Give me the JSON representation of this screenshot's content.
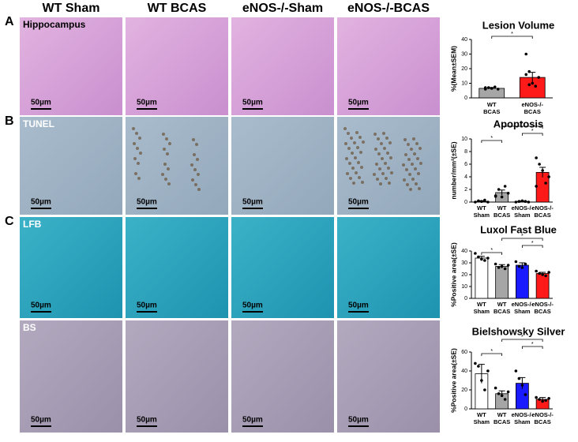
{
  "figure": {
    "columns": [
      "WT Sham",
      "WT BCAS",
      "eNOS-/-Sham",
      "eNOS-/-BCAS"
    ],
    "rows": [
      {
        "letter": "A",
        "stain": "Hippocampus",
        "scale": "50µm"
      },
      {
        "letter": "B",
        "stain": "TUNEL",
        "scale": "50µm"
      },
      {
        "letter": "C",
        "stain": "LFB",
        "scale": "50µm"
      },
      {
        "stain": "BS",
        "scale": "50µm"
      }
    ]
  },
  "chart_data": [
    {
      "type": "bar",
      "title": "Lesion Volume",
      "ylabel": "%(Mean±SEM)",
      "categories": [
        "WT BCAS",
        "eNOS-/- BCAS"
      ],
      "values": [
        6.5,
        14
      ],
      "errors": [
        0.6,
        3.5
      ],
      "colors": [
        "#a6a6a6",
        "#ff1a1a"
      ],
      "points": [
        [
          6,
          7,
          6.5,
          7.5,
          6,
          7
        ],
        [
          30,
          18,
          10,
          8,
          14,
          16,
          9
        ]
      ],
      "ylim": [
        0,
        40
      ],
      "yticks": [
        0,
        10,
        20,
        30,
        40
      ],
      "significance": [
        "*"
      ]
    },
    {
      "type": "bar",
      "title": "Apoptosis",
      "ylabel": "number/mm²(±SE)",
      "categories": [
        "WT Sham",
        "WT BCAS",
        "eNOS-/- Sham",
        "eNOS-/- BCAS"
      ],
      "values": [
        0.1,
        1.5,
        0.1,
        4.7
      ],
      "errors": [
        0.1,
        0.4,
        0.05,
        0.8
      ],
      "colors": [
        "#ffffff",
        "#a6a6a6",
        "#1a1aff",
        "#ff1a1a"
      ],
      "points": [
        [
          0,
          0.2,
          0.1,
          0.3,
          0
        ],
        [
          1,
          2,
          0.8,
          2.5,
          1.4,
          0.9
        ],
        [
          0,
          0.1,
          0.2,
          0.1,
          0
        ],
        [
          7,
          6,
          5,
          3,
          4,
          2.5
        ]
      ],
      "ylim": [
        0,
        10
      ],
      "yticks": [
        0,
        2,
        4,
        6,
        8,
        10
      ],
      "significance": [
        "*",
        "*",
        "*"
      ]
    },
    {
      "type": "bar",
      "title": "Luxol Fast Blue",
      "ylabel": "%Positive area(±SE)",
      "categories": [
        "WT Sham",
        "WT BCAS",
        "eNOS-/- Sham",
        "eNOS-/- BCAS"
      ],
      "values": [
        34,
        27,
        28,
        21
      ],
      "errors": [
        1.5,
        1.5,
        2,
        1
      ],
      "colors": [
        "#ffffff",
        "#a6a6a6",
        "#1a1aff",
        "#ff1a1a"
      ],
      "points": [
        [
          38,
          35,
          33,
          32,
          34
        ],
        [
          29,
          26,
          27,
          25,
          28
        ],
        [
          31,
          27,
          26,
          29
        ],
        [
          23,
          21,
          20,
          19,
          22
        ]
      ],
      "ylim": [
        0,
        40
      ],
      "yticks": [
        0,
        10,
        20,
        30,
        40
      ],
      "significance": [
        "*",
        "*",
        "*"
      ]
    },
    {
      "type": "bar",
      "title": "Bielshowsky Silver",
      "ylabel": "%Positive area(±SE)",
      "categories": [
        "WT Sham",
        "WT BCAS",
        "eNOS-/- Sham",
        "eNOS-/- BCAS"
      ],
      "values": [
        37,
        16,
        27,
        10
      ],
      "errors": [
        10,
        3,
        6,
        2
      ],
      "colors": [
        "#ffffff",
        "#a6a6a6",
        "#1a1aff",
        "#ff1a1a"
      ],
      "points": [
        [
          48,
          45,
          30,
          20,
          40
        ],
        [
          22,
          16,
          14,
          10,
          18
        ],
        [
          40,
          32,
          25,
          15
        ],
        [
          12,
          10,
          8,
          9,
          11
        ]
      ],
      "ylim": [
        0,
        60
      ],
      "yticks": [
        0,
        20,
        40,
        60
      ],
      "significance": [
        "*",
        "*",
        "*"
      ]
    }
  ]
}
